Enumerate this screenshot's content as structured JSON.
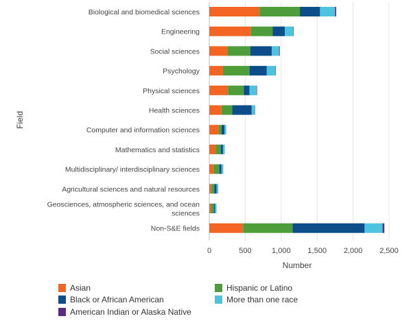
{
  "chart_data": {
    "type": "bar",
    "orientation": "horizontal",
    "stacked": true,
    "xlabel": "Number",
    "ylabel": "Field",
    "xlim": [
      0,
      2500
    ],
    "xticks": [
      0,
      500,
      1000,
      1500,
      2000,
      2500
    ],
    "xtick_labels": [
      "0",
      "500",
      "1,000",
      "1,500",
      "2,000",
      "2,500"
    ],
    "grid": "vertical",
    "legend_position": "bottom",
    "categories": [
      [
        "Biological and biomedical sciences"
      ],
      [
        "Engineering"
      ],
      [
        "Social sciences"
      ],
      [
        "Psychology"
      ],
      [
        "Physical sciences"
      ],
      [
        "Health sciences"
      ],
      [
        "Computer and information sciences"
      ],
      [
        "Mathematics and statistics"
      ],
      [
        "Multidisciplinary/ interdisciplinary sciences"
      ],
      [
        "Agricultural sciences and natural resources"
      ],
      [
        "Geosciences, atmospheric sciences, and ocean",
        "sciences"
      ],
      [
        "Non-S&E fields"
      ]
    ],
    "series": [
      {
        "name": "Asian",
        "color": "#f26522",
        "values": [
          700,
          580,
          250,
          190,
          260,
          170,
          130,
          90,
          60,
          30,
          25,
          470
        ]
      },
      {
        "name": "Hispanic or Latino",
        "color": "#4d9e3a",
        "values": [
          560,
          300,
          320,
          370,
          220,
          150,
          40,
          70,
          80,
          40,
          40,
          690
        ]
      },
      {
        "name": "Black or African American",
        "color": "#0d4e8a",
        "values": [
          280,
          170,
          300,
          240,
          80,
          270,
          40,
          30,
          30,
          30,
          15,
          1000
        ]
      },
      {
        "name": "More than one race",
        "color": "#4ec3e0",
        "values": [
          210,
          120,
          100,
          120,
          100,
          40,
          20,
          20,
          20,
          15,
          15,
          250
        ]
      },
      {
        "name": "American Indian or Alaska Native",
        "color": "#5b2c83",
        "values": [
          15,
          5,
          10,
          5,
          5,
          5,
          3,
          3,
          3,
          5,
          3,
          25
        ]
      }
    ]
  }
}
